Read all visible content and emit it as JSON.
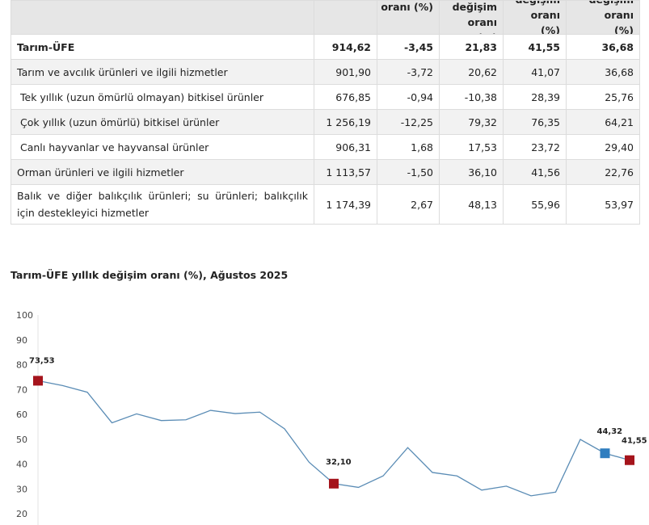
{
  "table": {
    "headers": [
      "",
      "oranı (%)",
      "değişim oranı (%)",
      "değişim oranı (%)",
      "değişim oranı (%)"
    ],
    "rows": [
      {
        "label": "Tarım-ÜFE",
        "values": [
          "914,62",
          "-3,45",
          "21,83",
          "41,55",
          "36,68"
        ]
      },
      {
        "label": "Tarım ve avcılık ürünleri ve ilgili hizmetler",
        "values": [
          "901,90",
          "-3,72",
          "20,62",
          "41,07",
          "36,68"
        ]
      },
      {
        "label": "Tek yıllık (uzun ömürlü olmayan) bitkisel ürünler",
        "values": [
          "676,85",
          "-0,94",
          "-10,38",
          "28,39",
          "25,76"
        ]
      },
      {
        "label": "Çok yıllık (uzun ömürlü) bitkisel ürünler",
        "values": [
          "1 256,19",
          "-12,25",
          "79,32",
          "76,35",
          "64,21"
        ]
      },
      {
        "label": "Canlı hayvanlar ve hayvansal ürünler",
        "values": [
          "906,31",
          "1,68",
          "17,53",
          "23,72",
          "29,40"
        ]
      },
      {
        "label": "Orman ürünleri ve ilgili hizmetler",
        "values": [
          "1 113,57",
          "-1,50",
          "36,10",
          "41,56",
          "22,76"
        ]
      },
      {
        "label": "Balık ve diğer balıkçılık ürünleri; su ürünleri; balıkçılık için destekleyici hizmetler",
        "values": [
          "1 174,39",
          "2,67",
          "48,13",
          "55,96",
          "53,97"
        ]
      }
    ]
  },
  "chart_data": {
    "type": "line",
    "title": "Tarım-ÜFE yıllık değişim oranı (%), Ağustos 2025",
    "ylim": [
      20,
      100
    ],
    "yticks": [
      "100",
      "90",
      "80",
      "70",
      "60",
      "50",
      "40",
      "30",
      "20"
    ],
    "grid": false,
    "values": [
      73.53,
      71.6,
      68.9,
      56.6,
      60.2,
      57.5,
      57.8,
      61.6,
      60.3,
      60.9,
      54.2,
      40.7,
      32.1,
      30.6,
      35.2,
      46.6,
      36.6,
      35.2,
      29.5,
      31.1,
      27.2,
      28.7,
      49.9,
      44.32,
      41.55
    ],
    "highlighted": [
      {
        "index": 0,
        "label": "73,53",
        "color": "#a5141c"
      },
      {
        "index": 12,
        "label": "32,10",
        "color": "#a5141c"
      },
      {
        "index": 23,
        "label": "44,32",
        "color": "#2f7dbf"
      },
      {
        "index": 24,
        "label": "41,55",
        "color": "#a5141c"
      }
    ],
    "line_color": "#5a8cb5"
  }
}
